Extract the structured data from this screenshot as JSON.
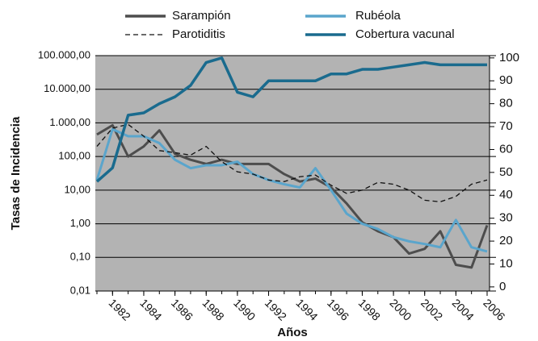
{
  "chart_data": {
    "type": "line",
    "ylabel": "Tasas de Incidencia",
    "xlabel": "Años",
    "x": [
      1981,
      1982,
      1983,
      1984,
      1985,
      1986,
      1987,
      1988,
      1989,
      1990,
      1991,
      1992,
      1993,
      1994,
      1995,
      1996,
      1997,
      1998,
      1999,
      2000,
      2001,
      2002,
      2003,
      2004,
      2005,
      2006
    ],
    "xlim": [
      1981,
      2006
    ],
    "xticks": [
      1982,
      1984,
      1986,
      1988,
      1990,
      1992,
      1994,
      1996,
      1998,
      2000,
      2002,
      2004,
      2006
    ],
    "ylim": [
      0.01,
      100000
    ],
    "yscale": "log",
    "yticks": [
      {
        "value": 0.01,
        "label": "0,01"
      },
      {
        "value": 0.1,
        "label": "0,10"
      },
      {
        "value": 1,
        "label": "1,00"
      },
      {
        "value": 10,
        "label": "10,00"
      },
      {
        "value": 100,
        "label": "100,00"
      },
      {
        "value": 1000,
        "label": "1.000,00"
      },
      {
        "value": 10000,
        "label": "10.000,00"
      },
      {
        "value": 100000,
        "label": "100.000,00"
      }
    ],
    "y2lim": [
      -1.8,
      101
    ],
    "y2ticks": [
      0,
      10,
      20,
      30,
      40,
      50,
      60,
      70,
      80,
      90,
      100
    ],
    "grid": true,
    "series": [
      {
        "name": "Sarampión",
        "color": "#4d4d4d",
        "linestyle": "solid",
        "values": [
          450,
          850,
          100,
          200,
          600,
          120,
          80,
          60,
          80,
          60,
          60,
          60,
          30,
          18,
          22,
          12,
          4,
          1.1,
          0.6,
          0.4,
          0.13,
          0.18,
          0.6,
          0.06,
          0.05,
          0.9
        ]
      },
      {
        "name": "Rubéola",
        "color": "#5aa5cc",
        "linestyle": "solid",
        "values": [
          20,
          650,
          400,
          400,
          250,
          80,
          45,
          55,
          55,
          70,
          30,
          20,
          15,
          12,
          45,
          10,
          2,
          1,
          0.7,
          0.4,
          0.3,
          0.25,
          0.2,
          1.3,
          0.2,
          0.15
        ]
      },
      {
        "name": "Parotiditis",
        "color": "#111111",
        "linestyle": "dashed",
        "values": [
          200,
          700,
          900,
          400,
          150,
          130,
          110,
          200,
          70,
          35,
          30,
          20,
          18,
          25,
          28,
          14,
          8,
          10,
          17,
          15,
          10,
          5,
          4.5,
          6.5,
          15,
          20
        ]
      },
      {
        "name": "Cobertura vacunal",
        "color": "#1a6b8e",
        "linestyle": "solid",
        "axis": "y2",
        "values": [
          46,
          52,
          75,
          76,
          80,
          83,
          88,
          98,
          100,
          85,
          83,
          90,
          90,
          90,
          90,
          93,
          93,
          95,
          95,
          96,
          97,
          98,
          97,
          97,
          97,
          97
        ]
      }
    ]
  }
}
